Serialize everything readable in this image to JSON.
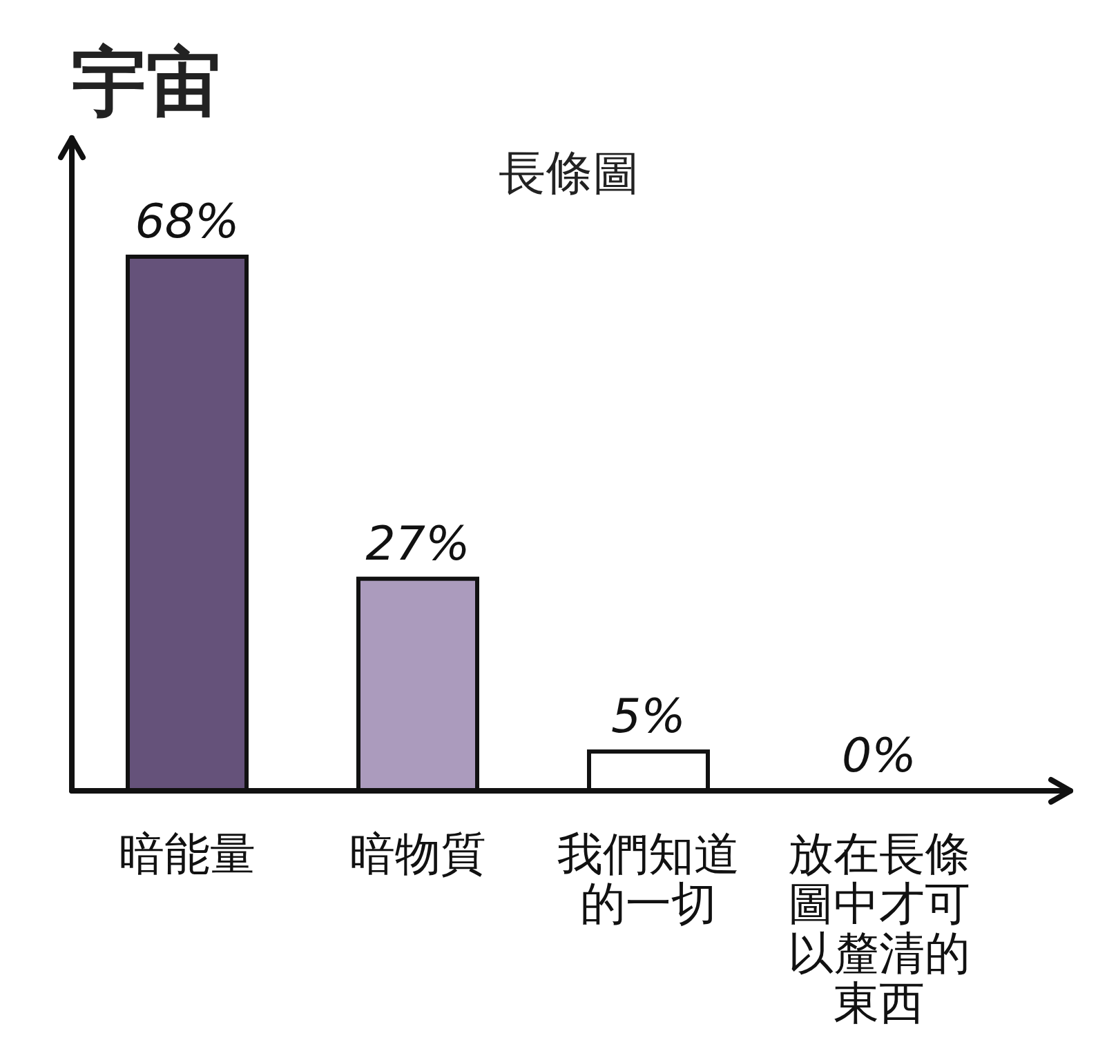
{
  "chart_data": {
    "type": "bar",
    "title": "宇宙",
    "subtitle": "長條圖",
    "categories": [
      "暗能量",
      "暗物質",
      "我們知道的一切",
      "放在長條圖中才可以釐清的東西"
    ],
    "values": [
      68,
      27,
      5,
      0
    ],
    "colors": [
      "#65527a",
      "#ab9bbd",
      "#ffffff",
      "#ffffff"
    ],
    "value_labels": [
      "68%",
      "27%",
      "5%",
      "0%"
    ]
  }
}
